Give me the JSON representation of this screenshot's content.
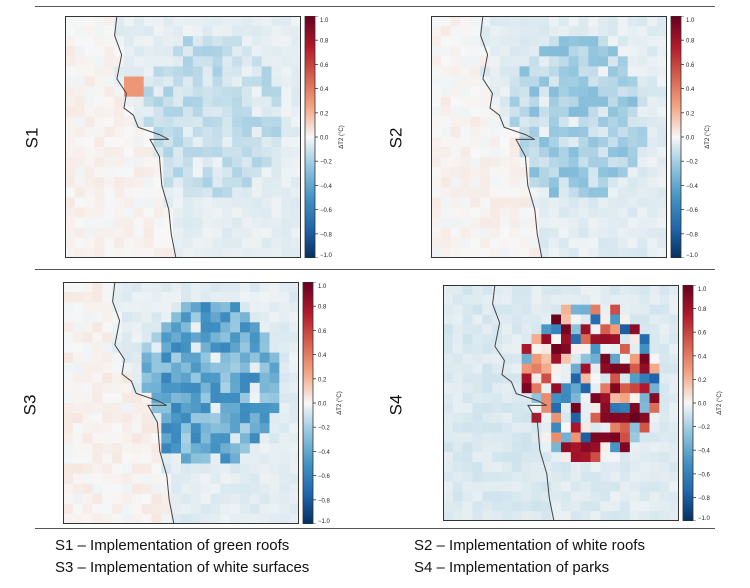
{
  "panel_labels": [
    "S1",
    "S2",
    "S3",
    "S4"
  ],
  "captions": [
    "S1 – Implementation of green roofs",
    "S2 – Implementation of white roofs",
    "S3 – Implementation of white surfaces",
    "S4 – Implementation of parks"
  ],
  "chart_data": [
    {
      "type": "heatmap",
      "panel": "S1",
      "title": "",
      "colorbar_label": "ΔT2 (°C)",
      "colorbar_ticks": [
        "1.0",
        "0.8",
        "0.6",
        "0.4",
        "0.2",
        "0.0",
        "−0.2",
        "−0.4",
        "−0.6",
        "−0.8",
        "−1.0"
      ],
      "vmin": -1.0,
      "vmax": 1.0,
      "colormap": "RdBu_r",
      "pattern": "mild cooling (about -0.1 to -0.2 °C) over the urban area east of the coastline, ~0.3 °C warm spot near the coast"
    },
    {
      "type": "heatmap",
      "panel": "S2",
      "title": "",
      "colorbar_label": "ΔT2 (°C)",
      "colorbar_ticks": [
        "1.0",
        "0.8",
        "0.6",
        "0.4",
        "0.2",
        "0.0",
        "−0.2",
        "−0.4",
        "−0.6",
        "−0.8",
        "−1.0"
      ],
      "vmin": -1.0,
      "vmax": 1.0,
      "colormap": "RdBu_r",
      "pattern": "cooling of about -0.2 to -0.3 °C over the urban area"
    },
    {
      "type": "heatmap",
      "panel": "S3",
      "title": "",
      "colorbar_label": "ΔT2 (°C)",
      "colorbar_ticks": [
        "1.0",
        "0.8",
        "0.6",
        "0.4",
        "0.2",
        "0.0",
        "−0.2",
        "−0.4",
        "−0.6",
        "−0.8",
        "−1.0"
      ],
      "vmin": -1.0,
      "vmax": 1.0,
      "colormap": "RdBu_r",
      "pattern": "stronger cooling of about -0.3 to -0.6 °C over the urban area"
    },
    {
      "type": "heatmap",
      "panel": "S4",
      "title": "",
      "colorbar_label": "ΔT2 (°C)",
      "colorbar_ticks": [
        "1.0",
        "0.8",
        "0.6",
        "0.4",
        "0.2",
        "0.0",
        "−0.2",
        "−0.4",
        "−0.6",
        "−0.8",
        "−1.0"
      ],
      "vmin": -1.0,
      "vmax": 1.0,
      "colormap": "RdBu_r",
      "pattern": "mixed strong warming up to about +1.0 °C and cooling down to about -0.8 °C over the urban area"
    }
  ]
}
